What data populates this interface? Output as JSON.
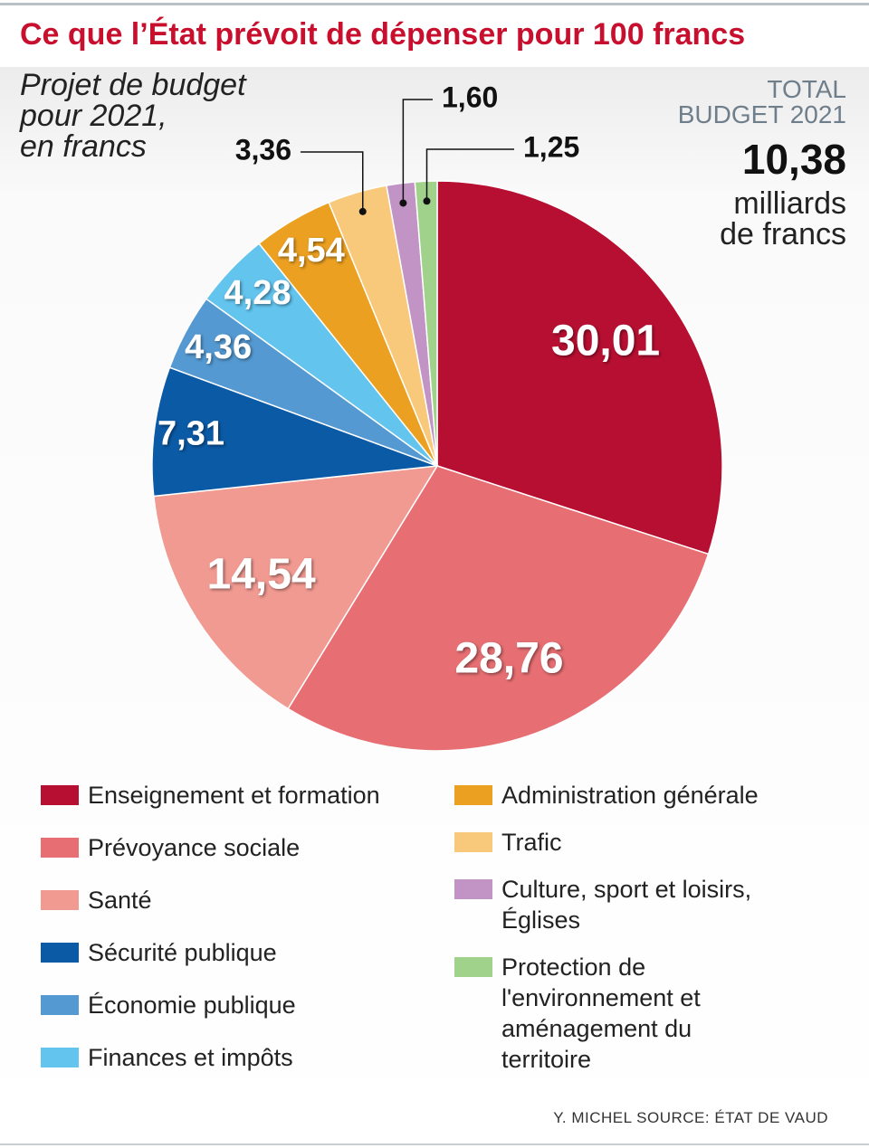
{
  "chart_data": {
    "type": "pie",
    "title": "Ce que l’État prévoit de dépenser pour 100 francs",
    "subtitle": [
      "Projet de budget",
      "pour 2021,",
      "en francs"
    ],
    "total": {
      "label": [
        "TOTAL",
        "BUDGET 2021"
      ],
      "value": "10,38",
      "unit": [
        "milliards",
        "de francs"
      ]
    },
    "categories": [
      "Enseignement et formation",
      "Prévoyance sociale",
      "Santé",
      "Sécurité publique",
      "Économie publique",
      "Finances et impôts",
      "Administration générale",
      "Trafic",
      "Culture, sport et loisirs, Églises",
      "Protection de l'environnement et aménagement du territoire"
    ],
    "values": [
      30.01,
      28.76,
      14.54,
      7.31,
      4.36,
      4.28,
      4.54,
      3.36,
      1.6,
      1.25
    ],
    "value_labels": [
      "30,01",
      "28,76",
      "14,54",
      "7,31",
      "4,36",
      "4,28",
      "4,54",
      "3,36",
      "1,60",
      "1,25"
    ],
    "colors": [
      "#b70f31",
      "#e76f73",
      "#f19a92",
      "#0b5aa6",
      "#5499d2",
      "#63c4ee",
      "#eca021",
      "#f9c97b",
      "#c194c5",
      "#a0d28c"
    ],
    "credit": "Y. MICHEL  SOURCE: ÉTAT DE VAUD"
  }
}
